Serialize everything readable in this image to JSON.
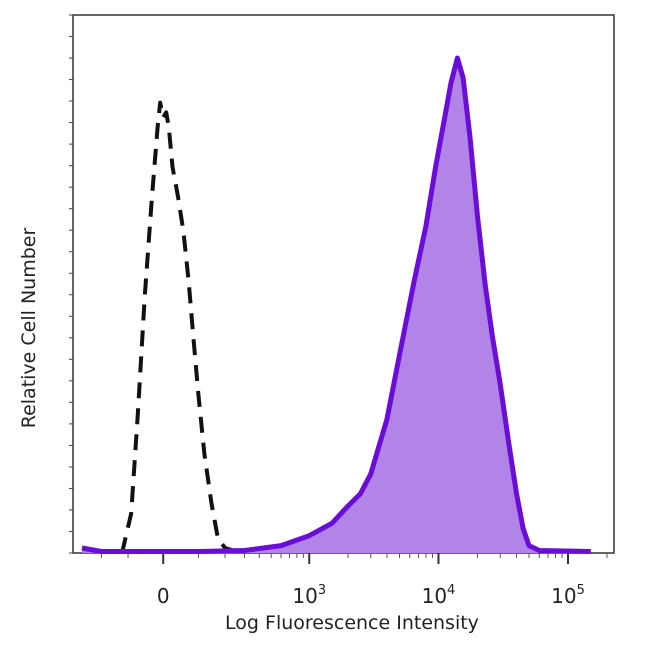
{
  "chart_data": {
    "type": "area",
    "title": "",
    "xlabel": "Log Fluorescence Intensity",
    "ylabel": "Relative Cell Number",
    "x_scale": "biexponential",
    "xlim": [
      -300,
      200000
    ],
    "ylim": [
      0,
      100
    ],
    "grid": false,
    "legend": "none",
    "x_tick_labels": [
      {
        "value": 0,
        "base": "0",
        "exp": ""
      },
      {
        "value": 1000,
        "base": "10",
        "exp": "3"
      },
      {
        "value": 10000,
        "base": "10",
        "exp": "4"
      },
      {
        "value": 100000,
        "base": "10",
        "exp": "5"
      }
    ],
    "series": [
      {
        "style": "dashed",
        "fill": false,
        "color": "#111111",
        "points": [
          [
            -120,
            0
          ],
          [
            -90,
            8
          ],
          [
            -70,
            28
          ],
          [
            -50,
            52
          ],
          [
            -30,
            72
          ],
          [
            -15,
            86
          ],
          [
            -8,
            91
          ],
          [
            0,
            88
          ],
          [
            8,
            89
          ],
          [
            15,
            86
          ],
          [
            25,
            78
          ],
          [
            40,
            72
          ],
          [
            55,
            65
          ],
          [
            70,
            55
          ],
          [
            85,
            43
          ],
          [
            100,
            32
          ],
          [
            120,
            20
          ],
          [
            145,
            10
          ],
          [
            170,
            3
          ],
          [
            200,
            1
          ],
          [
            240,
            0.5
          ]
        ]
      },
      {
        "style": "solid",
        "fill": true,
        "color": "#6a0dd6",
        "fill_color": "#b384e8",
        "points": [
          [
            -300,
            1
          ],
          [
            -200,
            0.3
          ],
          [
            100,
            0.3
          ],
          [
            300,
            0.5
          ],
          [
            600,
            1.5
          ],
          [
            1000,
            3.5
          ],
          [
            1500,
            6
          ],
          [
            2000,
            9.5
          ],
          [
            2500,
            12
          ],
          [
            3000,
            16
          ],
          [
            4000,
            27
          ],
          [
            5000,
            40
          ],
          [
            6500,
            55
          ],
          [
            8000,
            66
          ],
          [
            9500,
            78
          ],
          [
            11000,
            87
          ],
          [
            12500,
            95
          ],
          [
            14000,
            100
          ],
          [
            15500,
            96
          ],
          [
            17500,
            84
          ],
          [
            20000,
            68
          ],
          [
            23000,
            54
          ],
          [
            26000,
            44
          ],
          [
            30000,
            34
          ],
          [
            35000,
            22
          ],
          [
            40000,
            12
          ],
          [
            45000,
            5
          ],
          [
            50000,
            1.5
          ],
          [
            60000,
            0.5
          ],
          [
            150000,
            0.3
          ]
        ]
      }
    ]
  }
}
